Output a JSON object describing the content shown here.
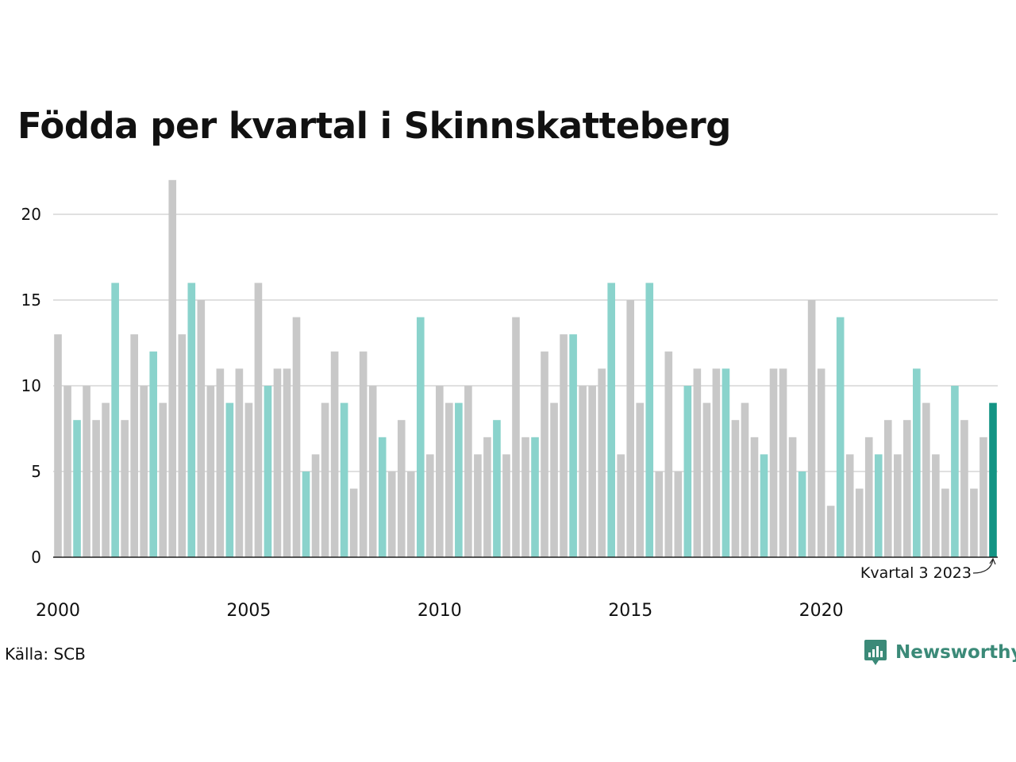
{
  "title": "Födda per kvartal i Skinnskatteberg",
  "source": "Källa: SCB",
  "brand": {
    "name": "Newsworthy",
    "icon": "newsworthy-logo-icon"
  },
  "colors": {
    "bar_gray": "#c8c8c8",
    "bar_teal": "#8ad3cc",
    "bar_highlight": "#139484",
    "grid": "#e0e0e0",
    "brand": "#3b8a78"
  },
  "annotation": {
    "text": "Kvartal 3 2023"
  },
  "chart_data": {
    "type": "bar",
    "title": "Födda per kvartal i Skinnskatteberg",
    "xlabel": "",
    "ylabel": "",
    "ylim": [
      0,
      22
    ],
    "yticks": [
      0,
      5,
      10,
      15,
      20
    ],
    "xtick_labels": [
      "2000",
      "2005",
      "2010",
      "2015",
      "2020"
    ],
    "grid": true,
    "start": {
      "year": 2000,
      "quarter": 1
    },
    "highlight_quarter": 3,
    "values": [
      13,
      10,
      8,
      10,
      8,
      9,
      16,
      8,
      13,
      10,
      12,
      9,
      22,
      13,
      16,
      15,
      10,
      11,
      9,
      11,
      9,
      16,
      10,
      11,
      11,
      14,
      5,
      6,
      9,
      12,
      9,
      4,
      12,
      10,
      7,
      5,
      8,
      5,
      14,
      6,
      10,
      9,
      9,
      10,
      6,
      7,
      8,
      6,
      14,
      7,
      7,
      12,
      9,
      13,
      13,
      10,
      10,
      11,
      16,
      6,
      15,
      9,
      16,
      5,
      12,
      5,
      10,
      11,
      9,
      11,
      11,
      8,
      9,
      7,
      6,
      11,
      11,
      7,
      5,
      15,
      11,
      3,
      14,
      6,
      4,
      7,
      6,
      8,
      6,
      8,
      11,
      9,
      6,
      4,
      10,
      8,
      4,
      7,
      9
    ]
  }
}
